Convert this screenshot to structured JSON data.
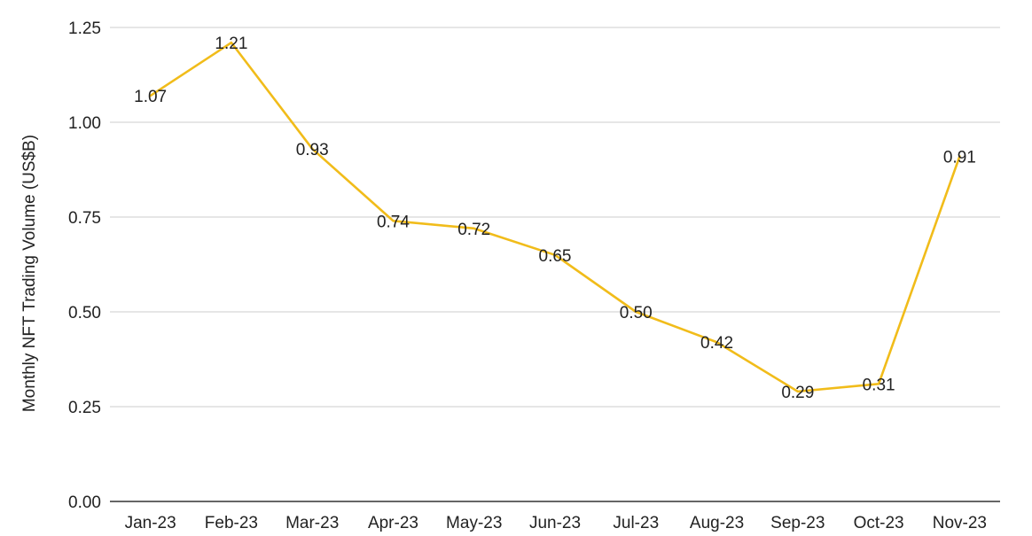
{
  "chart_data": {
    "type": "line",
    "title": "",
    "xlabel": "",
    "ylabel": "Monthly NFT Trading Volume (US$B)",
    "categories": [
      "Jan-23",
      "Feb-23",
      "Mar-23",
      "Apr-23",
      "May-23",
      "Jun-23",
      "Jul-23",
      "Aug-23",
      "Sep-23",
      "Oct-23",
      "Nov-23"
    ],
    "values": [
      1.07,
      1.21,
      0.93,
      0.74,
      0.72,
      0.65,
      0.5,
      0.42,
      0.29,
      0.31,
      0.91
    ],
    "data_labels": [
      "1.07",
      "1.21",
      "0.93",
      "0.74",
      "0.72",
      "0.65",
      "0.50",
      "0.42",
      "0.29",
      "0.31",
      "0.91"
    ],
    "ylim": [
      0,
      1.25
    ],
    "yticks": [
      0,
      0.25,
      0.5,
      0.75,
      1.0,
      1.25
    ],
    "ytick_labels": [
      "0.00",
      "0.25",
      "0.50",
      "0.75",
      "1.00",
      "1.25"
    ],
    "grid": true,
    "legend": "none",
    "line_color": "#f1bc1a"
  }
}
